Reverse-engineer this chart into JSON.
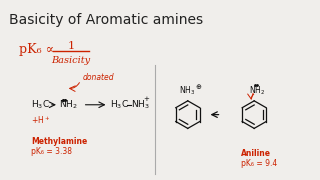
{
  "title": "Basicity of Aromatic amines",
  "title_fontsize": 10,
  "title_color": "#222222",
  "bg_color": "#f0eeeb",
  "formula_color": "#cc2200",
  "text_color": "#333333",
  "dark_color": "#111111",
  "methylamine_label": "Methylamine",
  "methylamine_pka": "pK₆ = 3.38",
  "aniline_label": "Aniline",
  "aniline_pka": "pK₆ = 9.4",
  "donated_text": "donated",
  "proportional_text": "pK₆ ∝"
}
